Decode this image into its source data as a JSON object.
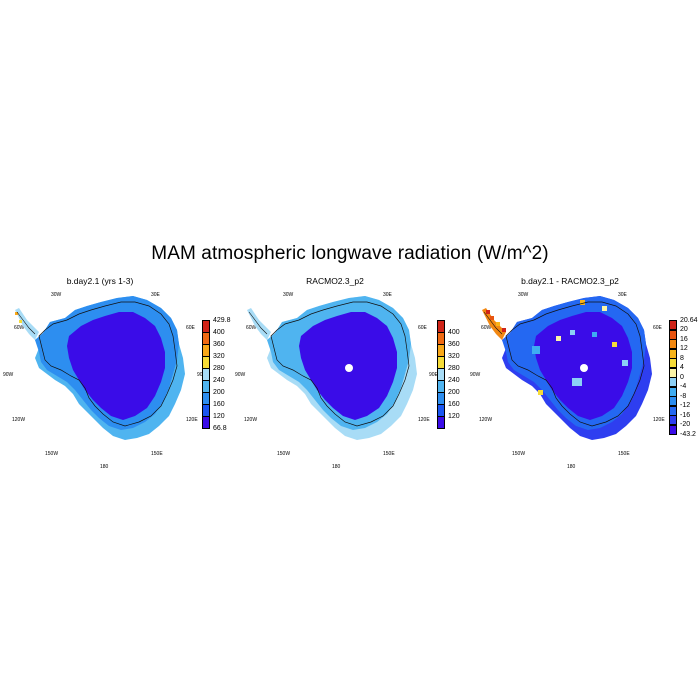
{
  "title": "MAM atmospheric longwave radiation (W/m^2)",
  "longitude_labels": {
    "lon_30w": "30W",
    "lon_30e": "30E",
    "lon_60w": "60W",
    "lon_60e": "60E",
    "lon_90w": "90W",
    "lon_90e": "90E",
    "lon_120w": "120W",
    "lon_120e": "120E",
    "lon_150w": "150W",
    "lon_150e": "150E",
    "lon_180": "180"
  },
  "chart_data": [
    {
      "type": "heatmap",
      "projection": "south-polar stereographic",
      "title": "b.day2.1 (yrs 1-3)",
      "colorbar": {
        "min_label": "66.8",
        "max_label": "429.8",
        "levels": [
          "400",
          "360",
          "320",
          "280",
          "240",
          "200",
          "160",
          "120"
        ],
        "colors": [
          "#3a0ce8",
          "#1a56f2",
          "#2d8ef0",
          "#4fb4f0",
          "#a8dcf6",
          "#f6dc38",
          "#f9a818",
          "#f06a12",
          "#d02418"
        ]
      },
      "dominant_range": [
        66.8,
        200
      ]
    },
    {
      "type": "heatmap",
      "projection": "south-polar stereographic",
      "title": "RACMO2.3_p2",
      "colorbar": {
        "levels": [
          "400",
          "360",
          "320",
          "280",
          "240",
          "200",
          "160",
          "120"
        ],
        "colors": [
          "#3a0ce8",
          "#1a56f2",
          "#2d8ef0",
          "#4fb4f0",
          "#a8dcf6",
          "#f6dc38",
          "#f9a818",
          "#f06a12",
          "#d02418"
        ]
      },
      "dominant_range": [
        80,
        240
      ]
    },
    {
      "type": "heatmap",
      "projection": "south-polar stereographic",
      "title": "b.day2.1 - RACMO2.3_p2",
      "colorbar": {
        "min_label": "-43.2",
        "max_label": "20.64",
        "levels": [
          "20",
          "16",
          "12",
          "8",
          "4",
          "0",
          "-4",
          "-8",
          "-12",
          "-16",
          "-20"
        ],
        "colors": [
          "#3a0ce8",
          "#2e3ef0",
          "#2468f2",
          "#2a8cf0",
          "#3eacf2",
          "#8cd0f6",
          "#fbf4a8",
          "#f6dc38",
          "#f9b418",
          "#f28812",
          "#e85410",
          "#d02418"
        ]
      },
      "dominant_range": [
        -43.2,
        0
      ]
    }
  ]
}
